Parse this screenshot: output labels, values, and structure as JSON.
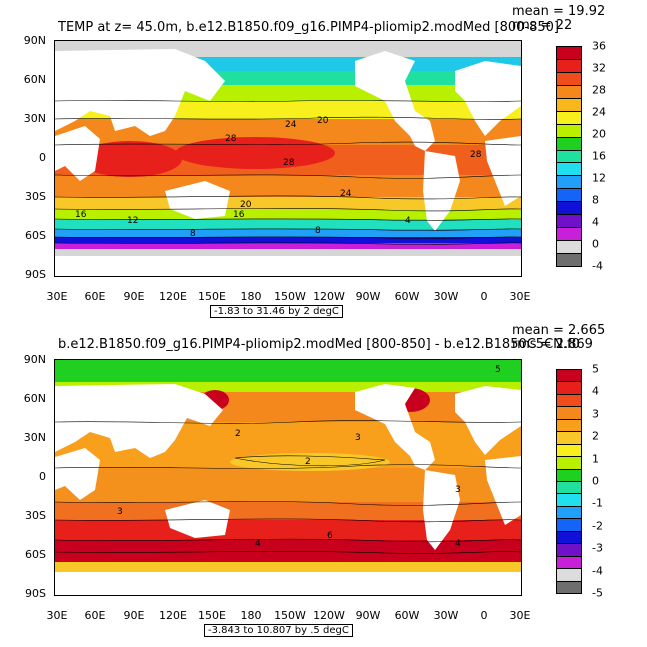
{
  "panels": [
    {
      "id": "top",
      "title": "TEMP at z=  45.0m, b.e12.B1850.f09_g16.PIMP4-pliomip2.modMed [800-850]",
      "mean_label": "mean = 19.92",
      "rms_label": "rms = 22",
      "contour_info": "-1.83 to 31.46 by 2 degC",
      "lat_labels": [
        "90N",
        "60N",
        "30N",
        "0",
        "30S",
        "60S",
        "90S"
      ],
      "lon_labels": [
        "30E",
        "60E",
        "90E",
        "120E",
        "150E",
        "180",
        "150W",
        "120W",
        "90W",
        "60W",
        "30W",
        "0",
        "30E"
      ],
      "colorbar": {
        "labels": [
          "36",
          "32",
          "28",
          "24",
          "20",
          "16",
          "12",
          "8",
          "4",
          "0",
          "-4"
        ],
        "colors": [
          "#c8001e",
          "#e8201c",
          "#f04c1c",
          "#f4881c",
          "#f8b81c",
          "#f8f01c",
          "#b8f000",
          "#20d020",
          "#20e0a0",
          "#20e0f0",
          "#20a0f8",
          "#1464f8",
          "#1010d8",
          "#7010c8",
          "#c820d8",
          "#dcdcdc",
          "#6e6e6e"
        ]
      },
      "contour_labels": [
        "24",
        "20",
        "28",
        "28",
        "28",
        "24",
        "20",
        "16",
        "16",
        "12",
        "8",
        "8",
        "4"
      ]
    },
    {
      "id": "bottom",
      "title": "b.e12.B1850.f09_g16.PIMP4-pliomip2.modMed [800-850] - b.e12.B1850C5CN.f0",
      "mean_label": "mean = 2.665",
      "rms_label": "rms = 2.869",
      "contour_info": "-3.843 to 10.807 by .5 degC",
      "lat_labels": [
        "90N",
        "60N",
        "30N",
        "0",
        "30S",
        "60S",
        "90S"
      ],
      "lon_labels": [
        "30E",
        "60E",
        "90E",
        "120E",
        "150E",
        "180",
        "150W",
        "120W",
        "90W",
        "60W",
        "30W",
        "0",
        "30E"
      ],
      "colorbar": {
        "labels": [
          "5",
          "4",
          "3",
          "2",
          "1",
          "0",
          "-1",
          "-2",
          "-3",
          "-4",
          "-5"
        ],
        "colors": [
          "#c8001e",
          "#e8201c",
          "#f04c1c",
          "#f4881c",
          "#f8a01c",
          "#f8c828",
          "#f8f01c",
          "#b8f000",
          "#20d020",
          "#20e0a0",
          "#20e0f0",
          "#20a0f8",
          "#1464f8",
          "#1010d8",
          "#7010c8",
          "#c820d8",
          "#dcdcdc",
          "#6e6e6e"
        ]
      },
      "contour_labels": [
        "5",
        "2",
        "3",
        "2",
        "3",
        "3",
        "4",
        "6",
        "4"
      ]
    }
  ]
}
